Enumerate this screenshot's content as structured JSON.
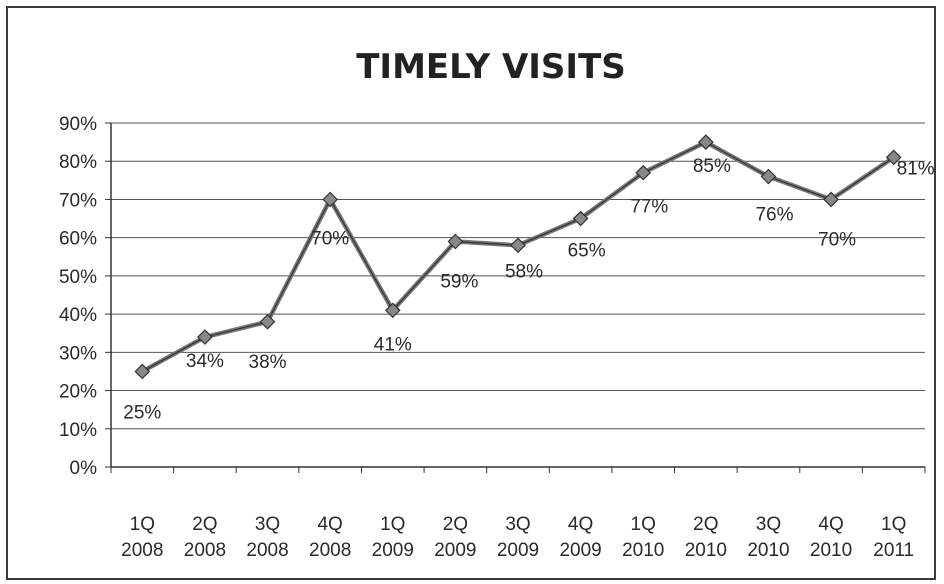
{
  "chart_data": {
    "type": "line",
    "title": "TIMELY VISITS",
    "xlabel": "",
    "ylabel": "",
    "ylim": [
      0,
      90
    ],
    "y_ticks": [
      "0%",
      "10%",
      "20%",
      "30%",
      "40%",
      "50%",
      "60%",
      "70%",
      "80%",
      "90%"
    ],
    "grid": true,
    "categories": [
      [
        "1Q",
        "2008"
      ],
      [
        "2Q",
        "2008"
      ],
      [
        "3Q",
        "2008"
      ],
      [
        "4Q",
        "2008"
      ],
      [
        "1Q",
        "2009"
      ],
      [
        "2Q",
        "2009"
      ],
      [
        "3Q",
        "2009"
      ],
      [
        "4Q",
        "2009"
      ],
      [
        "1Q",
        "2010"
      ],
      [
        "2Q",
        "2010"
      ],
      [
        "3Q",
        "2010"
      ],
      [
        "4Q",
        "2010"
      ],
      [
        "1Q",
        "2011"
      ]
    ],
    "series": [
      {
        "values": [
          25,
          34,
          38,
          70,
          41,
          59,
          58,
          65,
          77,
          85,
          76,
          70,
          81
        ],
        "labels": [
          "25%",
          "34%",
          "38%",
          "70%",
          "41%",
          "59%",
          "58%",
          "65%",
          "77%",
          "85%",
          "76%",
          "70%",
          "81%"
        ],
        "color": "#555555",
        "marker": "diamond"
      }
    ]
  }
}
